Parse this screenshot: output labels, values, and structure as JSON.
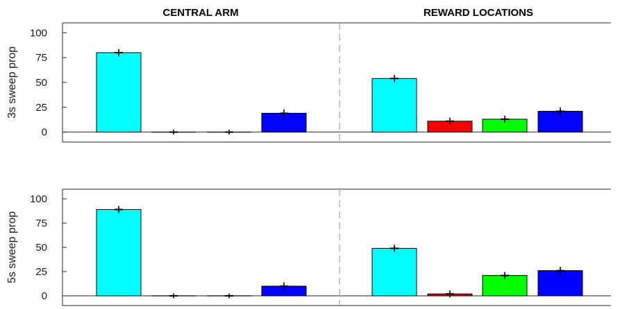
{
  "section_titles": [
    "CENTRAL ARM",
    "REWARD LOCATIONS"
  ],
  "chart_data": [
    {
      "type": "bar",
      "ylabel": "3s sweep prop",
      "ylim": [
        -10,
        110
      ],
      "yticks": [
        0,
        25,
        50,
        75,
        100
      ],
      "groups": [
        {
          "name": "CENTRAL ARM",
          "values": [
            80,
            0,
            0,
            19
          ],
          "errors": [
            1.5,
            0.3,
            0.3,
            1.8
          ]
        },
        {
          "name": "REWARD LOCATIONS",
          "values": [
            54,
            11,
            13,
            21
          ],
          "errors": [
            1.5,
            1.5,
            1.5,
            1.8
          ]
        }
      ],
      "bar_colors": [
        "#00ffff",
        "#ff0000",
        "#00ff00",
        "#0000ff"
      ],
      "central_colors": [
        "#00ffff",
        "#0000ff",
        "#0000ff",
        "#0000ff"
      ],
      "divider_color": "#aaaaaa"
    },
    {
      "type": "bar",
      "ylabel": "5s sweep prop",
      "ylim": [
        -10,
        110
      ],
      "yticks": [
        0,
        25,
        50,
        75,
        100
      ],
      "groups": [
        {
          "name": "CENTRAL ARM",
          "values": [
            89,
            0,
            0,
            10
          ],
          "errors": [
            1.5,
            0.3,
            0.3,
            1.8
          ]
        },
        {
          "name": "REWARD LOCATIONS",
          "values": [
            49,
            2,
            21,
            26
          ],
          "errors": [
            1.5,
            1.5,
            1.5,
            1.8
          ]
        }
      ],
      "bar_colors": [
        "#00ffff",
        "#ff0000",
        "#00ff00",
        "#0000ff"
      ],
      "central_colors": [
        "#00ffff",
        "#0000ff",
        "#0000ff",
        "#0000ff"
      ],
      "divider_color": "#aaaaaa"
    }
  ]
}
